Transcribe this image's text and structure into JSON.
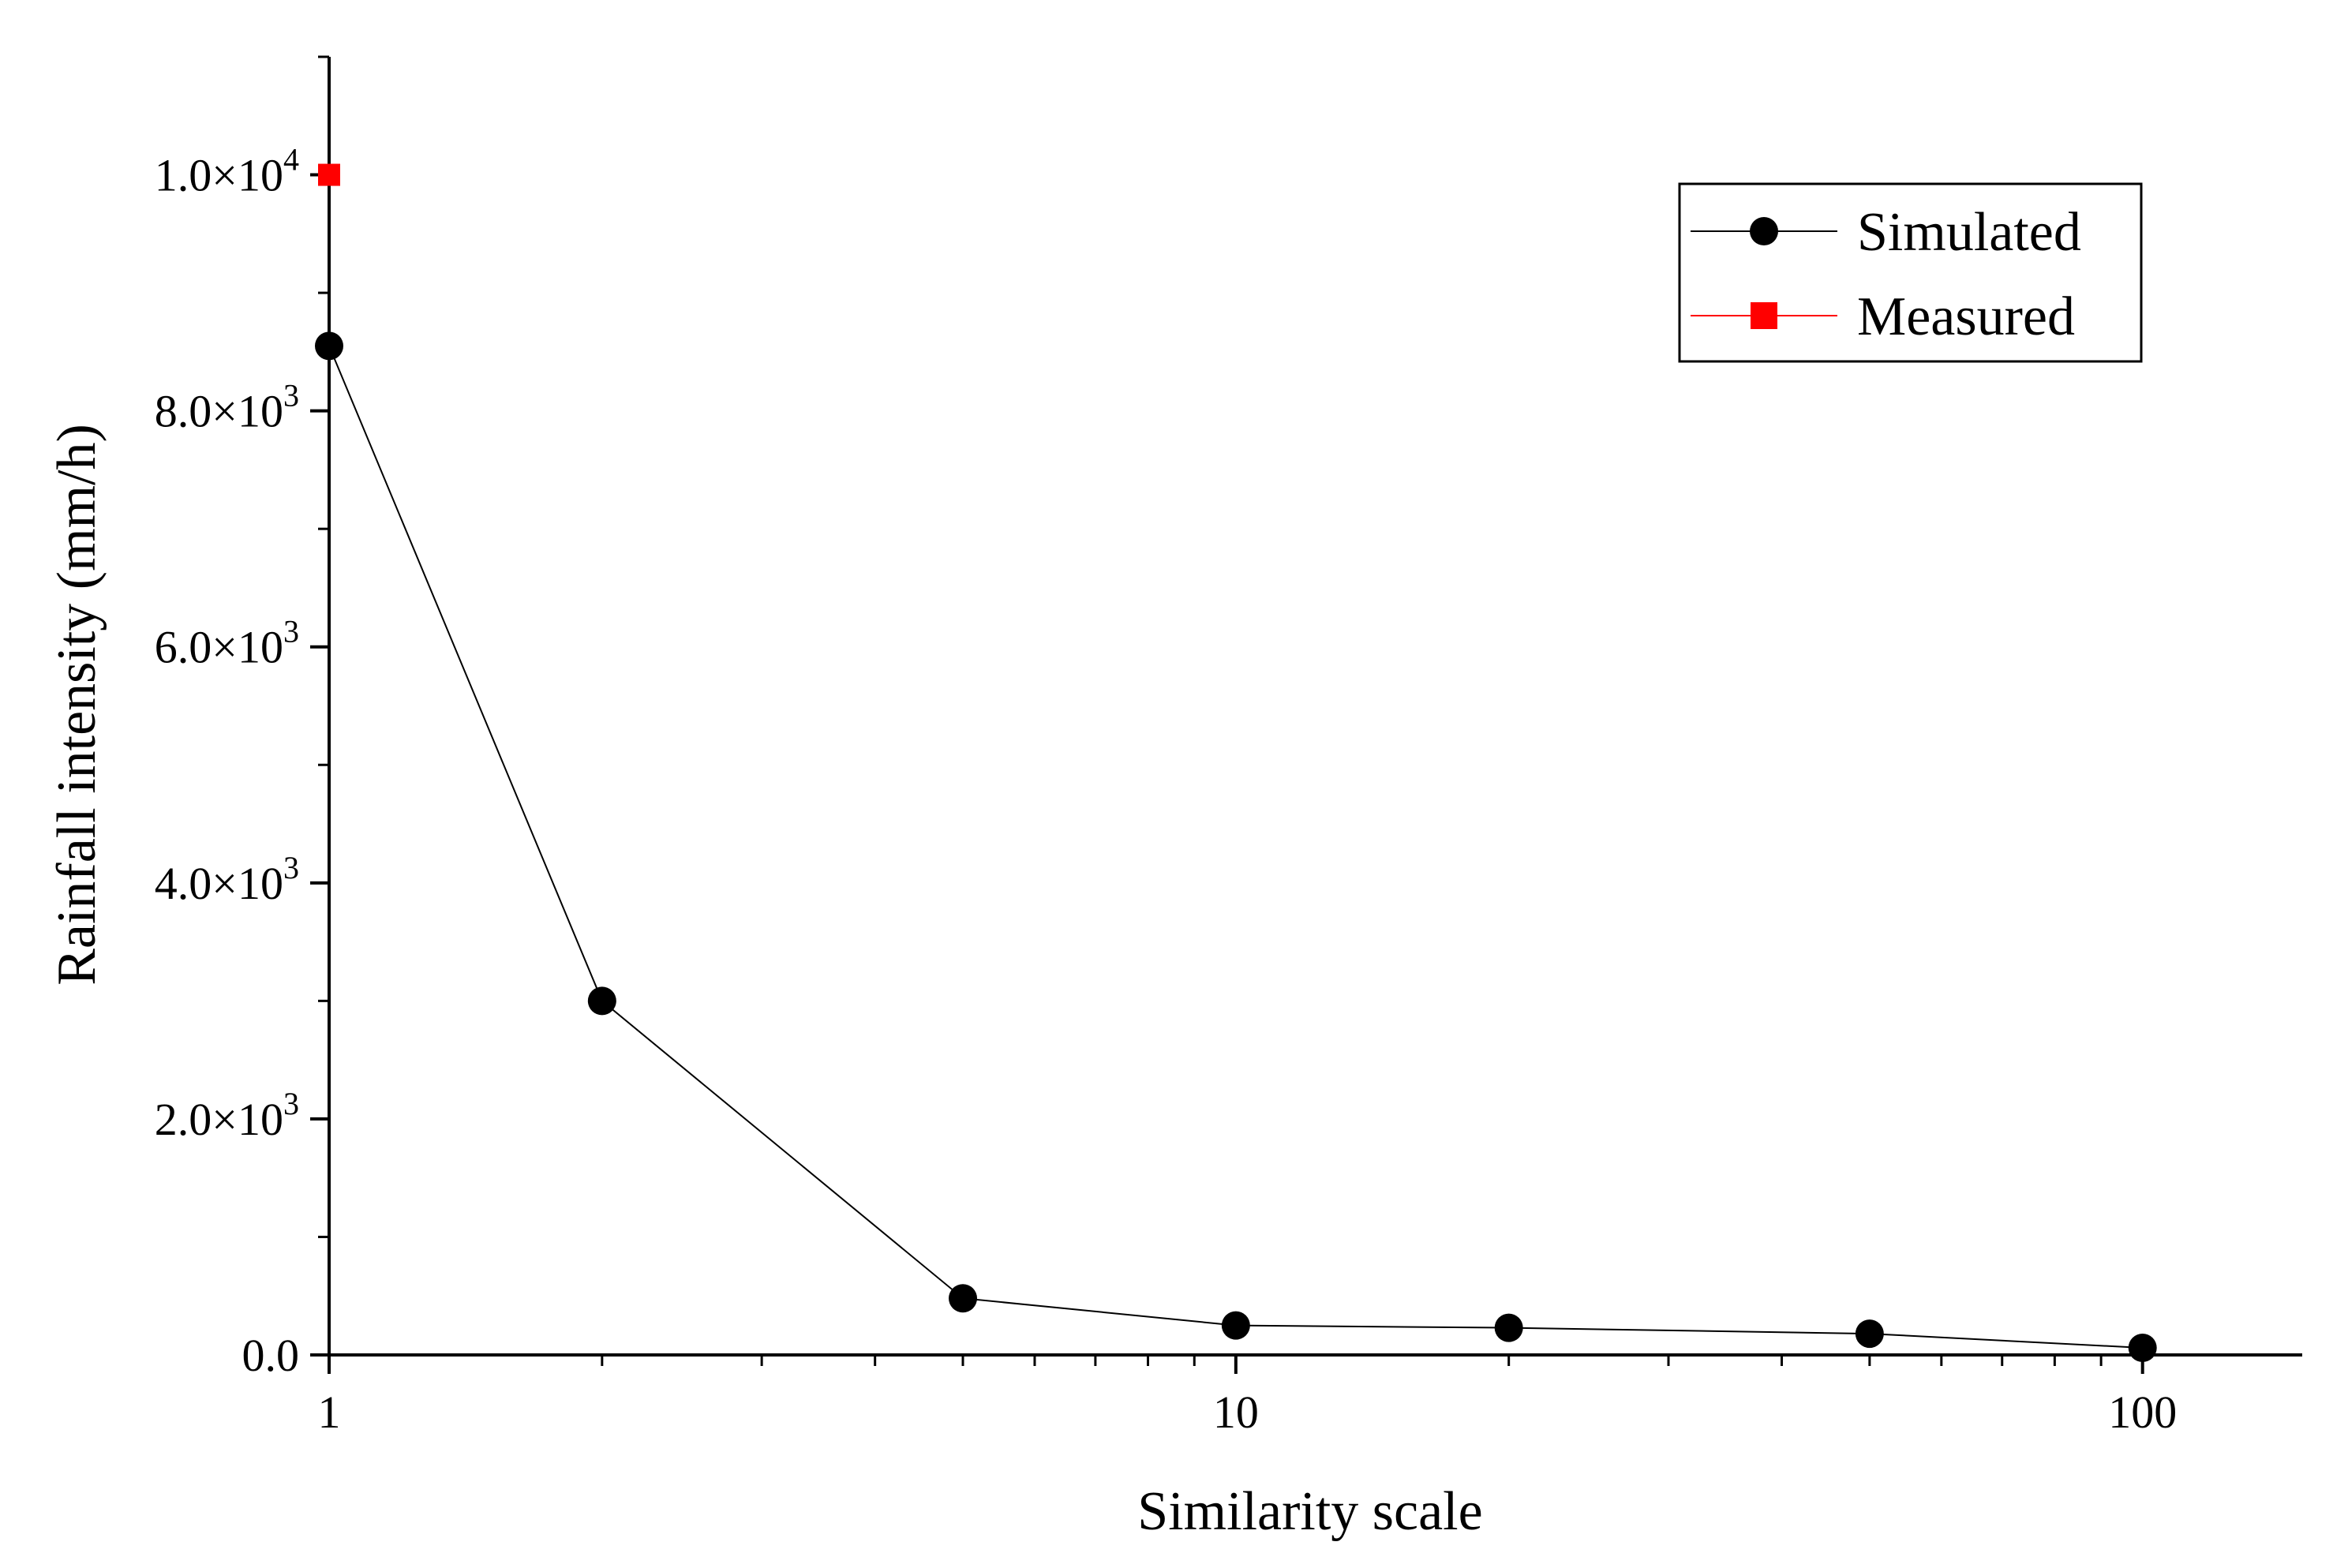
{
  "chart_data": {
    "type": "line",
    "title": "",
    "xlabel": "Similarity scale",
    "ylabel": "Rainfall intensity (mm/h)",
    "x_scale": "log",
    "xlim": [
      1,
      150
    ],
    "ylim": [
      0,
      11000
    ],
    "x_ticks": [
      {
        "value": 1,
        "label": "1"
      },
      {
        "value": 10,
        "label": "10"
      },
      {
        "value": 100,
        "label": "100"
      }
    ],
    "y_ticks": [
      {
        "value": 0,
        "mantissa": "0.0",
        "exp": ""
      },
      {
        "value": 2000,
        "mantissa": "2.0×10",
        "exp": "3"
      },
      {
        "value": 4000,
        "mantissa": "4.0×10",
        "exp": "3"
      },
      {
        "value": 6000,
        "mantissa": "6.0×10",
        "exp": "3"
      },
      {
        "value": 8000,
        "mantissa": "8.0×10",
        "exp": "3"
      },
      {
        "value": 10000,
        "mantissa": "1.0×10",
        "exp": "4"
      }
    ],
    "y_minor_step": 1000,
    "grid": false,
    "legend_position": "top-right",
    "series": [
      {
        "name": "Simulated",
        "color": "#000000",
        "marker": "circle",
        "x": [
          1,
          2,
          5,
          10,
          20,
          50,
          100
        ],
        "y": [
          8550,
          3000,
          480,
          250,
          230,
          180,
          60
        ]
      },
      {
        "name": "Measured",
        "color": "#ff0000",
        "marker": "square",
        "x": [
          1
        ],
        "y": [
          10000
        ]
      }
    ]
  }
}
